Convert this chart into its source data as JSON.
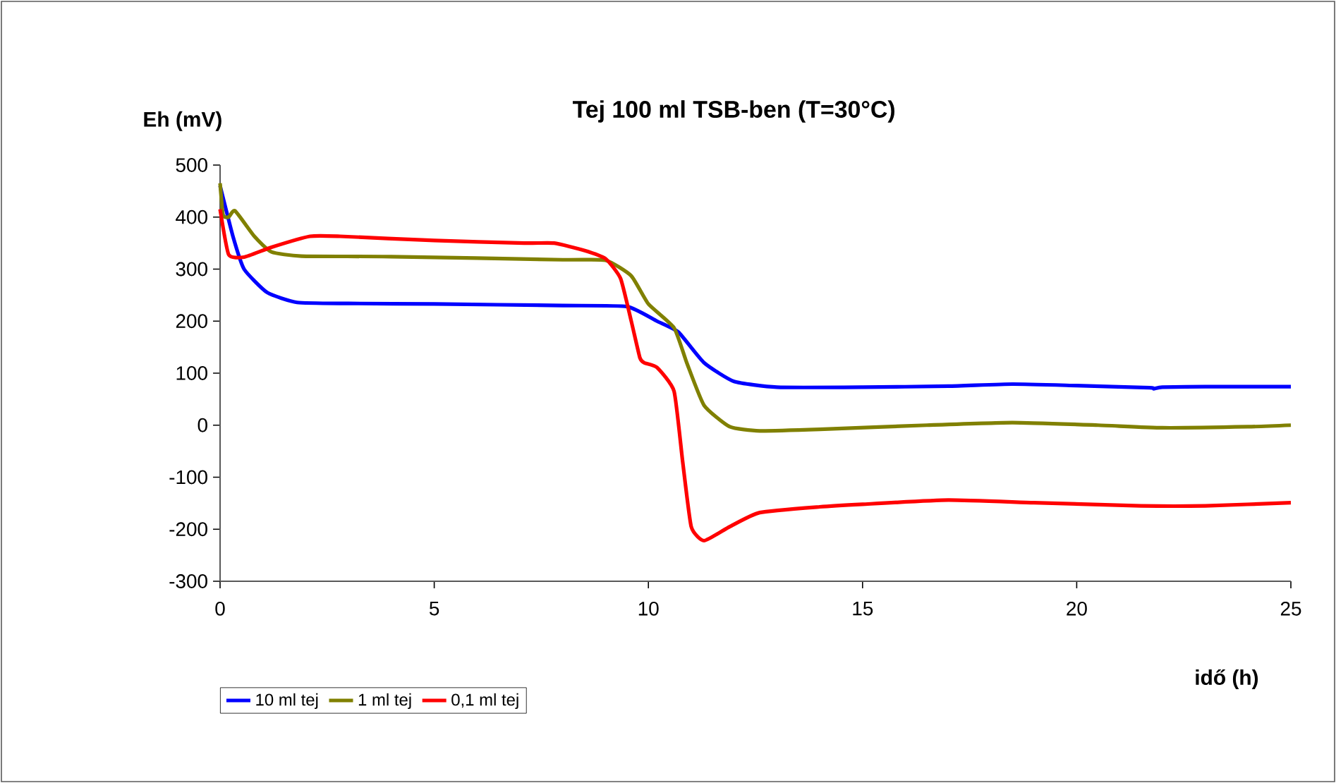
{
  "chart_data": {
    "type": "line",
    "title": "Tej 100 ml TSB-ben (T=30°C)",
    "xlabel": "idő (h)",
    "ylabel": "Eh (mV)",
    "xlim": [
      0,
      25
    ],
    "xticks": [
      0,
      5,
      10,
      15,
      20,
      25
    ],
    "ylim": [
      -300,
      500
    ],
    "yticks": [
      -300,
      -200,
      -100,
      0,
      100,
      200,
      300,
      400,
      500
    ],
    "grid": false,
    "legend": "bottom",
    "marker": "none",
    "line_style": "solid",
    "series": [
      {
        "name": "10 ml tej",
        "color": "#0000ff",
        "x": [
          0,
          0.3,
          0.56,
          1.1,
          1.8,
          3,
          5,
          8,
          9.5,
          10.2,
          10.7,
          11.3,
          12,
          13,
          15,
          17,
          18.5,
          20,
          21.7,
          21.8,
          22,
          23,
          25
        ],
        "values": [
          460,
          363,
          300,
          255,
          236,
          234,
          233,
          230,
          228,
          200,
          179,
          120,
          84,
          73,
          73,
          75,
          79,
          76,
          72,
          70,
          73,
          74,
          74
        ]
      },
      {
        "name": "1 ml tej",
        "color": "#808000",
        "x": [
          0,
          0.07,
          0.2,
          0.35,
          0.8,
          1.2,
          1.9,
          4,
          8,
          9,
          9.6,
          10,
          10.6,
          10.9,
          11.3,
          11.9,
          12.6,
          14,
          16.5,
          18.5,
          20.5,
          22,
          24,
          25
        ],
        "values": [
          465,
          404,
          400,
          412,
          363,
          333,
          325,
          324,
          318,
          317,
          287,
          233,
          187,
          119,
          38,
          -3,
          -11,
          -8,
          0,
          5,
          0,
          -5,
          -3,
          0
        ]
      },
      {
        "name": "0,1 ml tej",
        "color": "#ff0000",
        "x": [
          0,
          0.2,
          0.56,
          1.2,
          2.1,
          2.8,
          5,
          7.1,
          7.8,
          8.5,
          9,
          9.35,
          9.6,
          9.8,
          9.9,
          10.2,
          10.6,
          10.8,
          11,
          11.3,
          11.9,
          12.6,
          14,
          15,
          17,
          19,
          21.5,
          23,
          25
        ],
        "values": [
          415,
          328,
          323,
          342,
          363,
          363,
          355,
          350,
          350,
          336,
          320,
          282,
          200,
          130,
          120,
          111,
          65,
          -70,
          -195,
          -222,
          -195,
          -168,
          -157,
          -152,
          -144,
          -149,
          -155,
          -155,
          -149
        ]
      }
    ]
  }
}
